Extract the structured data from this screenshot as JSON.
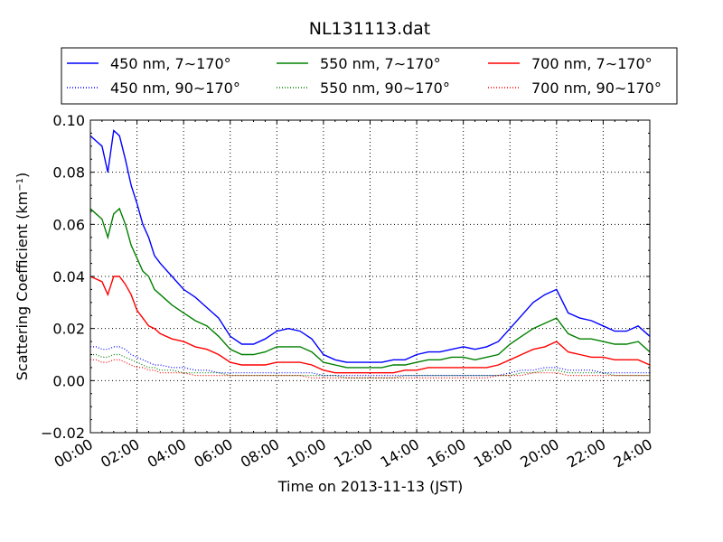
{
  "chart_data": {
    "type": "line",
    "title": "NL131113.dat",
    "xlabel": "Time on 2013-11-13 (JST)",
    "ylabel_main": "Scattering Coefficient (km",
    "ylabel_sup": "−1",
    "ylabel_end": ")",
    "xlim": [
      "00:00",
      "24:00"
    ],
    "ylim": [
      -0.02,
      0.1
    ],
    "grid": true,
    "legend_position": "top",
    "x_ticks": [
      "00:00",
      "02:00",
      "04:00",
      "06:00",
      "08:00",
      "10:00",
      "12:00",
      "14:00",
      "16:00",
      "18:00",
      "20:00",
      "22:00",
      "24:00"
    ],
    "y_ticks": [
      "−0.02",
      "0.00",
      "0.02",
      "0.04",
      "0.06",
      "0.08",
      "0.10"
    ],
    "x_hours": [
      0,
      0.25,
      0.5,
      0.75,
      1,
      1.25,
      1.5,
      1.75,
      2,
      2.25,
      2.5,
      2.75,
      3,
      3.5,
      4,
      4.5,
      5,
      5.5,
      6,
      6.5,
      7,
      7.5,
      8,
      8.5,
      9,
      9.5,
      10,
      10.5,
      11,
      11.5,
      12,
      12.5,
      13,
      13.5,
      14,
      14.5,
      15,
      15.5,
      16,
      16.5,
      17,
      17.5,
      18,
      18.5,
      19,
      19.5,
      20,
      20.5,
      21,
      21.5,
      22,
      22.5,
      23,
      23.5,
      24
    ],
    "series": [
      {
        "name": "450 nm, 7∼170°",
        "color": "#0000ff",
        "style": "solid",
        "values": [
          0.094,
          0.092,
          0.09,
          0.08,
          0.096,
          0.094,
          0.085,
          0.075,
          0.068,
          0.06,
          0.055,
          0.048,
          0.045,
          0.04,
          0.035,
          0.032,
          0.028,
          0.024,
          0.017,
          0.014,
          0.014,
          0.016,
          0.019,
          0.02,
          0.019,
          0.016,
          0.01,
          0.008,
          0.007,
          0.007,
          0.007,
          0.007,
          0.008,
          0.008,
          0.01,
          0.011,
          0.011,
          0.012,
          0.013,
          0.012,
          0.013,
          0.015,
          0.02,
          0.025,
          0.03,
          0.033,
          0.035,
          0.026,
          0.024,
          0.023,
          0.021,
          0.019,
          0.019,
          0.021,
          0.017
        ]
      },
      {
        "name": "450 nm, 90∼170°",
        "color": "#0000ff",
        "style": "dotted",
        "values": [
          0.013,
          0.013,
          0.012,
          0.012,
          0.013,
          0.013,
          0.012,
          0.01,
          0.009,
          0.008,
          0.007,
          0.006,
          0.006,
          0.005,
          0.005,
          0.004,
          0.004,
          0.003,
          0.003,
          0.003,
          0.003,
          0.003,
          0.003,
          0.003,
          0.003,
          0.003,
          0.002,
          0.002,
          0.002,
          0.002,
          0.002,
          0.002,
          0.002,
          0.002,
          0.002,
          0.002,
          0.002,
          0.002,
          0.002,
          0.002,
          0.002,
          0.002,
          0.003,
          0.004,
          0.004,
          0.005,
          0.005,
          0.004,
          0.004,
          0.004,
          0.003,
          0.003,
          0.003,
          0.003,
          0.003
        ]
      },
      {
        "name": "550 nm, 7∼170°",
        "color": "#008000",
        "style": "solid",
        "values": [
          0.066,
          0.064,
          0.062,
          0.055,
          0.064,
          0.066,
          0.06,
          0.052,
          0.047,
          0.042,
          0.04,
          0.035,
          0.033,
          0.029,
          0.026,
          0.023,
          0.021,
          0.017,
          0.012,
          0.01,
          0.01,
          0.011,
          0.013,
          0.013,
          0.013,
          0.011,
          0.007,
          0.006,
          0.005,
          0.005,
          0.005,
          0.005,
          0.006,
          0.006,
          0.007,
          0.008,
          0.008,
          0.009,
          0.009,
          0.008,
          0.009,
          0.01,
          0.014,
          0.017,
          0.02,
          0.022,
          0.024,
          0.018,
          0.016,
          0.016,
          0.015,
          0.014,
          0.014,
          0.015,
          0.011
        ]
      },
      {
        "name": "550 nm, 90∼170°",
        "color": "#008000",
        "style": "dotted",
        "values": [
          0.01,
          0.01,
          0.009,
          0.009,
          0.01,
          0.01,
          0.009,
          0.008,
          0.007,
          0.006,
          0.005,
          0.005,
          0.004,
          0.004,
          0.003,
          0.003,
          0.003,
          0.003,
          0.002,
          0.002,
          0.002,
          0.002,
          0.002,
          0.002,
          0.002,
          0.002,
          0.002,
          0.002,
          0.001,
          0.001,
          0.001,
          0.001,
          0.001,
          0.002,
          0.002,
          0.002,
          0.002,
          0.002,
          0.002,
          0.002,
          0.002,
          0.002,
          0.002,
          0.003,
          0.003,
          0.004,
          0.004,
          0.003,
          0.003,
          0.003,
          0.003,
          0.002,
          0.002,
          0.002,
          0.002
        ]
      },
      {
        "name": "700 nm, 7∼170°",
        "color": "#ff0000",
        "style": "solid",
        "values": [
          0.04,
          0.039,
          0.038,
          0.033,
          0.04,
          0.04,
          0.037,
          0.033,
          0.027,
          0.024,
          0.021,
          0.02,
          0.018,
          0.016,
          0.015,
          0.013,
          0.012,
          0.01,
          0.007,
          0.006,
          0.006,
          0.006,
          0.007,
          0.007,
          0.007,
          0.006,
          0.004,
          0.003,
          0.003,
          0.003,
          0.003,
          0.003,
          0.003,
          0.004,
          0.004,
          0.005,
          0.005,
          0.005,
          0.005,
          0.005,
          0.005,
          0.006,
          0.008,
          0.01,
          0.012,
          0.013,
          0.015,
          0.011,
          0.01,
          0.009,
          0.009,
          0.008,
          0.008,
          0.008,
          0.006
        ]
      },
      {
        "name": "700 nm, 90∼170°",
        "color": "#ff0000",
        "style": "dotted",
        "values": [
          0.008,
          0.008,
          0.007,
          0.007,
          0.008,
          0.008,
          0.007,
          0.006,
          0.005,
          0.005,
          0.004,
          0.004,
          0.003,
          0.003,
          0.003,
          0.002,
          0.002,
          0.002,
          0.002,
          0.002,
          0.002,
          0.002,
          0.002,
          0.002,
          0.002,
          0.001,
          0.001,
          0.001,
          0.001,
          0.001,
          0.001,
          0.001,
          0.001,
          0.001,
          0.001,
          0.001,
          0.001,
          0.001,
          0.001,
          0.001,
          0.001,
          0.002,
          0.002,
          0.002,
          0.003,
          0.003,
          0.003,
          0.002,
          0.002,
          0.002,
          0.002,
          0.002,
          0.002,
          0.002,
          0.002
        ]
      }
    ]
  }
}
